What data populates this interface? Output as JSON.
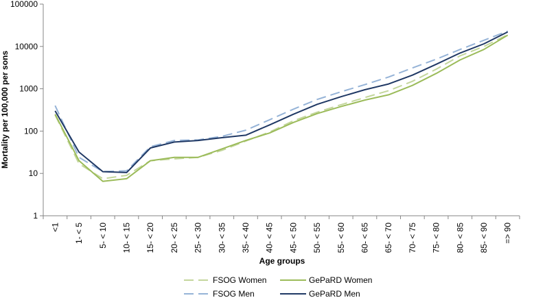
{
  "chart_data": {
    "type": "line",
    "xlabel": "Age groups",
    "ylabel": "Mortality per 100,000 per sons",
    "y_scale": "log",
    "ylim": [
      1,
      100000
    ],
    "y_ticks": [
      "1",
      "10",
      "100",
      "1000",
      "10000",
      "100000"
    ],
    "grid": false,
    "legend_position": "bottom",
    "categories": [
      "<1",
      "1- < 5",
      "5- < 10",
      "10- < 15",
      "15- < 20",
      "20- < 25",
      "25- < 30",
      "30- < 35",
      "35- < 40",
      "40- < 45",
      "45- < 50",
      "50- < 55",
      "55- < 60",
      "60- < 65",
      "65- < 70",
      "70- < 75",
      "75- < 80",
      "80- < 85",
      "85- < 90",
      "=> 90"
    ],
    "series": [
      {
        "name": "FSOG Women",
        "color": "#c3d69b",
        "dash": true,
        "values": [
          240,
          17,
          7.5,
          9,
          20,
          22,
          24,
          35,
          58,
          95,
          175,
          280,
          420,
          620,
          900,
          1500,
          2900,
          6000,
          10000,
          19000
        ]
      },
      {
        "name": "FSOG Men",
        "color": "#95b3d7",
        "dash": true,
        "values": [
          400,
          24,
          11,
          11.5,
          43,
          60,
          62,
          75,
          105,
          185,
          330,
          560,
          850,
          1250,
          1900,
          3100,
          5000,
          8500,
          14000,
          23000
        ]
      },
      {
        "name": "GePaRD Women",
        "color": "#9bbb59",
        "dash": false,
        "values": [
          250,
          20,
          6.5,
          7.5,
          20,
          24,
          24,
          38,
          60,
          90,
          160,
          260,
          380,
          540,
          720,
          1200,
          2300,
          4800,
          8500,
          18500
        ]
      },
      {
        "name": "GePaRD Men",
        "color": "#1f3864",
        "dash": false,
        "values": [
          300,
          32,
          11,
          10.5,
          40,
          55,
          60,
          70,
          80,
          140,
          250,
          430,
          650,
          950,
          1300,
          2100,
          3800,
          7000,
          11500,
          22000
        ]
      }
    ]
  }
}
